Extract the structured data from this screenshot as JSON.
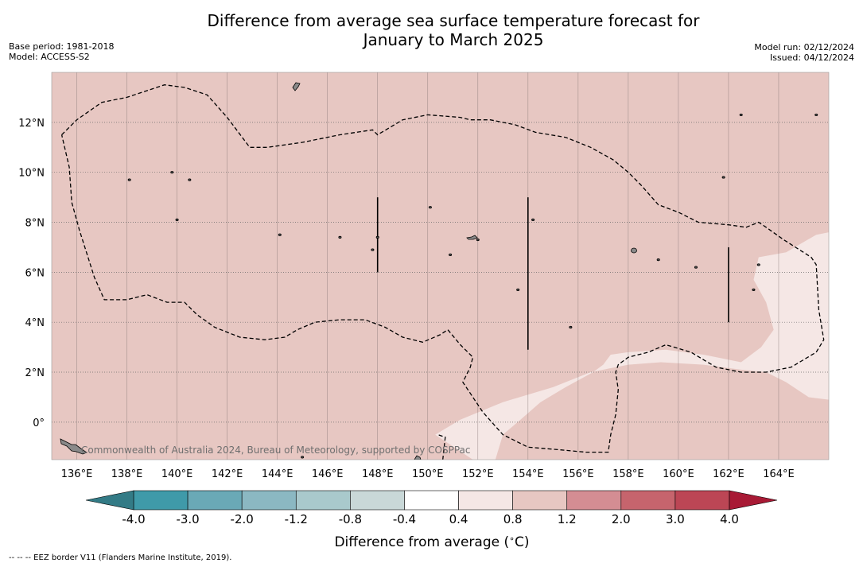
{
  "chart_data": {
    "type": "heatmap",
    "title_line1": "Difference from average sea surface temperature forecast for",
    "title_line2": "January to March 2025",
    "base_period": "Base period: 1981-2018",
    "model": "Model: ACCESS-S2",
    "model_run": "Model run: 02/12/2024",
    "issued": "Issued: 04/12/2024",
    "x_range": [
      135,
      166
    ],
    "y_range": [
      -1.5,
      14
    ],
    "x_ticks": [
      136,
      138,
      140,
      142,
      144,
      146,
      148,
      150,
      152,
      154,
      156,
      158,
      160,
      162,
      164
    ],
    "x_tick_labels": [
      "136°E",
      "138°E",
      "140°E",
      "142°E",
      "144°E",
      "146°E",
      "148°E",
      "150°E",
      "152°E",
      "154°E",
      "156°E",
      "158°E",
      "160°E",
      "162°E",
      "164°E"
    ],
    "y_ticks": [
      0,
      2,
      4,
      6,
      8,
      10,
      12
    ],
    "y_tick_labels": [
      "0°",
      "2°N",
      "4°N",
      "6°N",
      "8°N",
      "10°N",
      "12°N"
    ],
    "grid": true,
    "background_category": "0.8 to 1.2",
    "background_color": "#e7c7c2",
    "region_0_4_to_0_8": {
      "label": "0.4 to 0.8",
      "color": "#f5e7e5",
      "outline": [
        [
          150.3,
          -0.5
        ],
        [
          151.3,
          0.1
        ],
        [
          153,
          0.8
        ],
        [
          155,
          1.4
        ],
        [
          156.5,
          2.0
        ],
        [
          158,
          2.3
        ],
        [
          159.3,
          2.4
        ],
        [
          161,
          2.3
        ],
        [
          162.5,
          2.1
        ],
        [
          163.5,
          2.0
        ],
        [
          164.3,
          1.6
        ],
        [
          165.2,
          1.0
        ],
        [
          166,
          0.9
        ],
        [
          166,
          7.6
        ],
        [
          165.5,
          7.5
        ],
        [
          164.3,
          6.8
        ],
        [
          163.2,
          6.6
        ],
        [
          163,
          5.7
        ],
        [
          163.5,
          4.8
        ],
        [
          163.8,
          3.7
        ],
        [
          163.3,
          3.0
        ],
        [
          162.5,
          2.4
        ],
        [
          161,
          2.7
        ],
        [
          159.5,
          2.9
        ],
        [
          158,
          2.8
        ],
        [
          157.3,
          2.7
        ],
        [
          157,
          2.3
        ],
        [
          156.6,
          2.0
        ],
        [
          155.5,
          1.4
        ],
        [
          154.5,
          0.8
        ],
        [
          153.7,
          0.1
        ],
        [
          153,
          -0.5
        ],
        [
          152.7,
          -1.5
        ],
        [
          151.8,
          -1.5
        ]
      ]
    },
    "eez_border": {
      "style": "dashed",
      "main_loop": [
        [
          135.4,
          11.5
        ],
        [
          136,
          12.1
        ],
        [
          137,
          12.8
        ],
        [
          138,
          13.0
        ],
        [
          139.5,
          13.5
        ],
        [
          140.3,
          13.4
        ],
        [
          141.2,
          13.1
        ],
        [
          142,
          12.2
        ],
        [
          142.9,
          11.0
        ],
        [
          143.6,
          11.0
        ],
        [
          145,
          11.2
        ],
        [
          146.5,
          11.5
        ],
        [
          147.8,
          11.7
        ],
        [
          148,
          11.5
        ],
        [
          148.5,
          11.8
        ],
        [
          149,
          12.1
        ],
        [
          150,
          12.3
        ],
        [
          151.3,
          12.2
        ],
        [
          151.7,
          12.1
        ],
        [
          152.5,
          12.1
        ],
        [
          153.5,
          11.9
        ],
        [
          154.3,
          11.6
        ],
        [
          155.5,
          11.4
        ],
        [
          156.5,
          11.0
        ],
        [
          157.4,
          10.5
        ],
        [
          158,
          10.0
        ],
        [
          158.5,
          9.5
        ],
        [
          159.2,
          8.7
        ],
        [
          160,
          8.4
        ],
        [
          160.8,
          8.0
        ],
        [
          162,
          7.9
        ],
        [
          162.7,
          7.8
        ],
        [
          163.2,
          8.0
        ],
        [
          163.5,
          7.8
        ],
        [
          164.2,
          7.3
        ],
        [
          165.3,
          6.6
        ],
        [
          165.5,
          6.3
        ],
        [
          165.6,
          4.5
        ],
        [
          165.8,
          3.3
        ],
        [
          165.5,
          2.8
        ],
        [
          164.5,
          2.2
        ],
        [
          163.5,
          2.0
        ],
        [
          162.5,
          2.0
        ],
        [
          161.5,
          2.2
        ],
        [
          161,
          2.5
        ],
        [
          160.5,
          2.8
        ],
        [
          159.5,
          3.1
        ],
        [
          158.8,
          2.8
        ],
        [
          158,
          2.6
        ],
        [
          157.6,
          2.3
        ],
        [
          157.5,
          2.0
        ],
        [
          157.6,
          1.3
        ],
        [
          157.5,
          0.3
        ],
        [
          157.3,
          -0.5
        ],
        [
          157.2,
          -1.2
        ],
        [
          156.3,
          -1.2
        ],
        [
          155.2,
          -1.1
        ],
        [
          154,
          -1.0
        ],
        [
          153,
          -0.5
        ],
        [
          152.2,
          0.4
        ],
        [
          151.6,
          1.3
        ],
        [
          151.4,
          1.6
        ],
        [
          151.7,
          2.2
        ],
        [
          151.8,
          2.6
        ],
        [
          151.3,
          3.1
        ],
        [
          150.8,
          3.7
        ],
        [
          150.5,
          3.5
        ],
        [
          149.8,
          3.2
        ],
        [
          149,
          3.4
        ],
        [
          148.3,
          3.8
        ],
        [
          147.5,
          4.1
        ],
        [
          146.5,
          4.1
        ],
        [
          145.5,
          4.0
        ],
        [
          144.8,
          3.7
        ],
        [
          144.3,
          3.4
        ],
        [
          143.5,
          3.3
        ],
        [
          142.5,
          3.4
        ],
        [
          141.5,
          3.8
        ],
        [
          140.8,
          4.3
        ],
        [
          140.3,
          4.8
        ],
        [
          139.6,
          4.8
        ],
        [
          138.8,
          5.1
        ],
        [
          138,
          4.9
        ],
        [
          137.1,
          4.9
        ],
        [
          136.7,
          5.8
        ],
        [
          136.1,
          7.7
        ],
        [
          135.8,
          8.8
        ],
        [
          135.7,
          10.2
        ],
        [
          135.4,
          11.5
        ]
      ],
      "south_loop": [
        [
          150.6,
          -1.5
        ],
        [
          150.7,
          -0.6
        ],
        [
          150.4,
          -0.5
        ]
      ]
    },
    "vertical_lines": [
      {
        "lon": 148,
        "lat_from": 6.0,
        "lat_to": 9.0
      },
      {
        "lon": 154,
        "lat_from": 2.9,
        "lat_to": 9.0
      },
      {
        "lon": 162,
        "lat_from": 4.0,
        "lat_to": 7.0
      }
    ],
    "islands": [
      [
        147.8,
        6.9
      ],
      [
        138.1,
        9.7
      ],
      [
        154.2,
        8.1
      ],
      [
        152,
        7.3
      ],
      [
        159.2,
        6.5
      ],
      [
        163,
        5.3
      ],
      [
        163.2,
        6.3
      ],
      [
        162.5,
        12.3
      ],
      [
        165.5,
        12.3
      ],
      [
        140.5,
        9.7
      ],
      [
        155.7,
        3.8
      ],
      [
        150.9,
        6.7
      ],
      [
        150.1,
        8.6
      ],
      [
        146.5,
        7.4
      ],
      [
        144.1,
        7.5
      ],
      [
        148,
        7.4
      ],
      [
        139.8,
        10.0
      ],
      [
        140,
        8.1
      ],
      [
        153.6,
        5.3
      ],
      [
        160.7,
        6.2
      ],
      [
        161.8,
        9.8
      ],
      [
        145,
        -1.4
      ]
    ],
    "copyright": "Commonwealth of Australia 2024, Bureau of Meteorology, supported by COSPPac",
    "colorbar": {
      "label": "Difference from average (°C)",
      "label_prefix": "Difference from average (",
      "label_degree": "∘",
      "label_suffix": "C)",
      "tick_labels": [
        "-4.0",
        "-3.0",
        "-2.0",
        "-1.2",
        "-0.8",
        "-0.4",
        "0.4",
        "0.8",
        "1.2",
        "2.0",
        "3.0",
        "4.0"
      ],
      "colors": [
        "#3f9aa9",
        "#6aa9b6",
        "#8bb8c2",
        "#a9c9cc",
        "#c9d8d8",
        "#ffffff",
        "#f5e7e5",
        "#e7c7c2",
        "#d48d93",
        "#c6646d",
        "#bc4655"
      ],
      "low_extend_color": "#337b86",
      "high_extend_color": "#a81a35"
    },
    "footer": "--  --  -- EEZ border V11 (Flanders Marine Institute, 2019)."
  }
}
